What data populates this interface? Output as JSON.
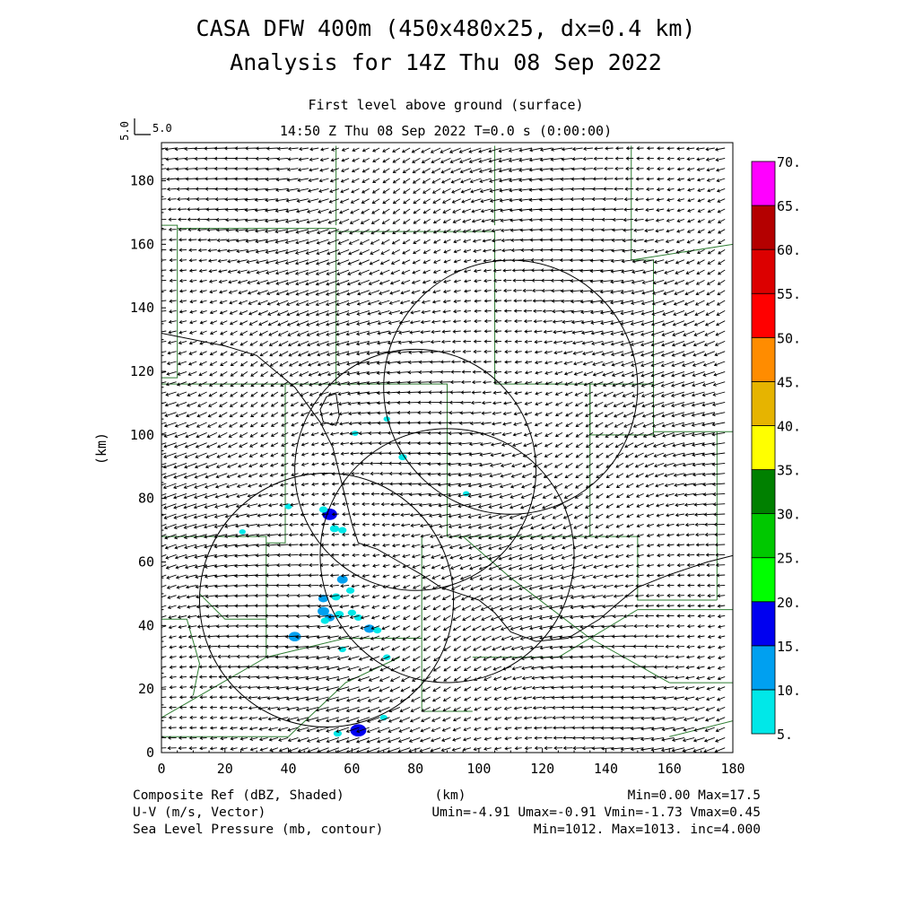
{
  "header": {
    "title_line1": "CASA DFW 400m (450x480x25, dx=0.4 km)",
    "title_line2": "Analysis for 14Z Thu 08 Sep 2022",
    "level": "First level above ground (surface)",
    "valid_time": "14:50 Z Thu 08 Sep 2022    T=0.0 s (0:00:00)"
  },
  "vector_key": {
    "label_vertical": "5.0",
    "label_horizontal": "5.0"
  },
  "axes": {
    "xlabel": "(km)",
    "ylabel": "(km)",
    "xlim": [
      0,
      180
    ],
    "ylim": [
      0,
      192
    ],
    "x_ticks": [
      "0",
      "20",
      "40",
      "60",
      "80",
      "100",
      "120",
      "140",
      "160",
      "180"
    ],
    "y_ticks": [
      "0",
      "20",
      "40",
      "60",
      "80",
      "100",
      "120",
      "140",
      "160",
      "180"
    ]
  },
  "colorbar": {
    "labels": [
      "5.",
      "10.",
      "15.",
      "20.",
      "25.",
      "30.",
      "35.",
      "40.",
      "45.",
      "50.",
      "55.",
      "60.",
      "65.",
      "70."
    ],
    "colors": [
      "#00e8e8",
      "#00a0f0",
      "#0000f0",
      "#00ff00",
      "#00c800",
      "#008000",
      "#ffff00",
      "#e6b400",
      "#ff8c00",
      "#ff0000",
      "#dc0000",
      "#b40000",
      "#ff00ff"
    ]
  },
  "footer": {
    "left": [
      "Composite Ref (dBZ, Shaded)",
      "U-V (m/s, Vector)",
      "Sea Level Pressure (mb, contour)"
    ],
    "center": "(km)",
    "right": [
      "Min=0.00 Max=17.5",
      "Umin=-4.91 Umax=-0.91 Vmin=-1.73 Vmax=0.45",
      "Min=1012. Max=1013. inc=4.000"
    ]
  },
  "map_data": {
    "radar_rings": [
      {
        "cx": 110,
        "cy": 115,
        "r": 40
      },
      {
        "cx": 80,
        "cy": 89,
        "r": 38
      },
      {
        "cx": 52,
        "cy": 48,
        "r": 40
      },
      {
        "cx": 90,
        "cy": 62,
        "r": 40
      }
    ],
    "wind": {
      "u_mean": -2.8,
      "v_mean": -0.7,
      "u_range": [
        -4.91,
        -0.91
      ],
      "v_range": [
        -1.73,
        0.45
      ]
    },
    "reflectivity_cells": [
      {
        "x": 53,
        "y": 75,
        "dbz": 16
      },
      {
        "x": 51,
        "y": 76.5,
        "dbz": 8
      },
      {
        "x": 54.5,
        "y": 70.5,
        "dbz": 9
      },
      {
        "x": 57,
        "y": 70,
        "dbz": 8
      },
      {
        "x": 57,
        "y": 54.5,
        "dbz": 11
      },
      {
        "x": 59.5,
        "y": 51,
        "dbz": 8
      },
      {
        "x": 55,
        "y": 49,
        "dbz": 9
      },
      {
        "x": 51,
        "y": 48.5,
        "dbz": 10
      },
      {
        "x": 51,
        "y": 44.5,
        "dbz": 12
      },
      {
        "x": 53,
        "y": 42.5,
        "dbz": 10
      },
      {
        "x": 56,
        "y": 43.5,
        "dbz": 9
      },
      {
        "x": 51.5,
        "y": 41.5,
        "dbz": 8
      },
      {
        "x": 60,
        "y": 44,
        "dbz": 8
      },
      {
        "x": 62,
        "y": 42.5,
        "dbz": 8
      },
      {
        "x": 65.5,
        "y": 39,
        "dbz": 11
      },
      {
        "x": 68,
        "y": 38.5,
        "dbz": 8
      },
      {
        "x": 42,
        "y": 36.5,
        "dbz": 13
      },
      {
        "x": 57,
        "y": 32.5,
        "dbz": 7
      },
      {
        "x": 71,
        "y": 30,
        "dbz": 7
      },
      {
        "x": 62,
        "y": 7,
        "dbz": 17.5
      },
      {
        "x": 55.5,
        "y": 6,
        "dbz": 8
      },
      {
        "x": 70,
        "y": 11,
        "dbz": 7
      },
      {
        "x": 40,
        "y": 77.5,
        "dbz": 7
      },
      {
        "x": 25.5,
        "y": 69.5,
        "dbz": 6
      },
      {
        "x": 76,
        "y": 93,
        "dbz": 8
      },
      {
        "x": 71,
        "y": 105,
        "dbz": 6
      },
      {
        "x": 61,
        "y": 100.5,
        "dbz": 6
      },
      {
        "x": 96,
        "y": 81.5,
        "dbz": 6
      }
    ],
    "county_lines": [
      [
        [
          0,
          166
        ],
        [
          5,
          166
        ],
        [
          5,
          118
        ],
        [
          0,
          118
        ]
      ],
      [
        [
          5,
          165
        ],
        [
          55,
          165
        ],
        [
          55,
          116
        ]
      ],
      [
        [
          55,
          166
        ],
        [
          55,
          191
        ]
      ],
      [
        [
          55,
          164
        ],
        [
          105,
          164
        ],
        [
          105,
          116
        ]
      ],
      [
        [
          105,
          166
        ],
        [
          105,
          191
        ]
      ],
      [
        [
          105,
          116
        ],
        [
          135,
          116
        ],
        [
          135,
          100
        ],
        [
          155,
          100
        ],
        [
          155,
          155
        ],
        [
          148,
          155
        ],
        [
          148,
          191
        ]
      ],
      [
        [
          148,
          155
        ],
        [
          180,
          160
        ]
      ],
      [
        [
          135,
          116
        ],
        [
          155,
          116
        ]
      ],
      [
        [
          155,
          101
        ],
        [
          175,
          101
        ],
        [
          175,
          48
        ]
      ],
      [
        [
          175,
          101
        ],
        [
          180,
          101
        ]
      ],
      [
        [
          0,
          116
        ],
        [
          90,
          116
        ],
        [
          90,
          68
        ],
        [
          135,
          68
        ],
        [
          135,
          116
        ]
      ],
      [
        [
          135,
          68
        ],
        [
          150,
          68
        ],
        [
          150,
          48
        ],
        [
          175,
          48
        ]
      ],
      [
        [
          0,
          68
        ],
        [
          33,
          68
        ],
        [
          33,
          66
        ],
        [
          39,
          66
        ],
        [
          39,
          116
        ]
      ],
      [
        [
          33,
          66
        ],
        [
          33,
          30
        ],
        [
          0,
          11
        ]
      ],
      [
        [
          33,
          30
        ],
        [
          58,
          36
        ],
        [
          82,
          36
        ],
        [
          82,
          13
        ]
      ],
      [
        [
          82,
          36
        ],
        [
          82,
          68
        ]
      ],
      [
        [
          82,
          13
        ],
        [
          98,
          13
        ]
      ],
      [
        [
          0,
          42
        ],
        [
          8,
          42
        ],
        [
          12,
          28
        ],
        [
          10,
          18
        ]
      ],
      [
        [
          12,
          50
        ],
        [
          20,
          42
        ],
        [
          33,
          42
        ]
      ],
      [
        [
          98,
          30
        ],
        [
          125,
          30
        ],
        [
          150,
          45
        ],
        [
          180,
          45
        ]
      ],
      [
        [
          160,
          22
        ],
        [
          180,
          22
        ]
      ],
      [
        [
          95,
          68
        ],
        [
          110,
          55
        ],
        [
          135,
          36
        ],
        [
          160,
          22
        ]
      ],
      [
        [
          0,
          5
        ],
        [
          40,
          5
        ],
        [
          58,
          22
        ],
        [
          75,
          30
        ]
      ],
      [
        [
          160,
          5
        ],
        [
          180,
          10
        ]
      ]
    ],
    "pressure_contours": [
      [
        [
          0,
          132
        ],
        [
          20,
          128
        ],
        [
          30,
          125
        ],
        [
          42,
          115
        ],
        [
          50,
          104
        ],
        [
          54,
          96
        ],
        [
          56,
          88
        ],
        [
          58,
          80
        ],
        [
          60,
          72
        ],
        [
          62,
          66
        ],
        [
          68,
          64
        ],
        [
          75,
          60
        ],
        [
          82,
          56
        ],
        [
          88,
          52
        ],
        [
          94,
          50
        ],
        [
          100,
          48
        ],
        [
          105,
          44
        ],
        [
          110,
          38
        ],
        [
          118,
          35
        ],
        [
          128,
          36
        ],
        [
          138,
          42
        ],
        [
          145,
          48
        ],
        [
          150,
          52
        ],
        [
          160,
          56
        ],
        [
          172,
          60
        ],
        [
          180,
          62
        ]
      ],
      [
        [
          55,
          113
        ],
        [
          52,
          112
        ],
        [
          50,
          108
        ],
        [
          51,
          104
        ],
        [
          55,
          103
        ],
        [
          56,
          106
        ],
        [
          55,
          113
        ]
      ]
    ]
  }
}
